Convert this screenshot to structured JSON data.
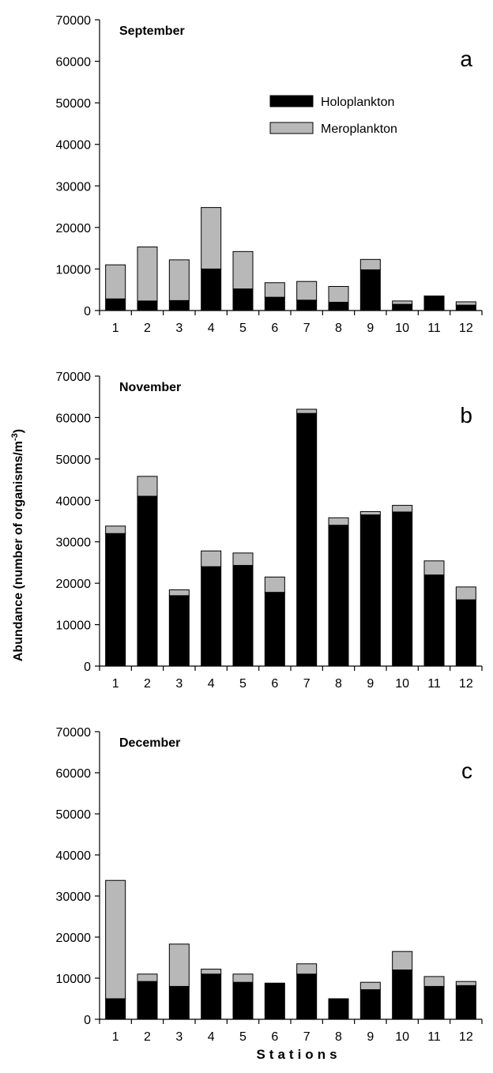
{
  "figure": {
    "ylabel": "Abundance (number of organisms/m",
    "ylabel_sup": "-3",
    "ylabel_close": ")",
    "xlabel": "Stations"
  },
  "legend": {
    "position": "panel a, upper right",
    "entries": [
      {
        "label": "Holoplankton",
        "color": "#000000"
      },
      {
        "label": "Meroplankton",
        "color": "#b8b8b8"
      }
    ]
  },
  "chart_data": [
    {
      "type": "bar",
      "stacked": true,
      "title": "September",
      "panel_label": "a",
      "categories": [
        "1",
        "2",
        "3",
        "4",
        "5",
        "6",
        "7",
        "8",
        "9",
        "10",
        "11",
        "12"
      ],
      "ylim": [
        0,
        70000
      ],
      "yticks": [
        0,
        10000,
        20000,
        30000,
        40000,
        50000,
        60000,
        70000
      ],
      "series": [
        {
          "name": "Holoplankton",
          "color": "#000000",
          "values": [
            2800,
            2300,
            2400,
            10000,
            5200,
            3200,
            2500,
            2000,
            9800,
            1500,
            3500,
            1300
          ]
        },
        {
          "name": "Meroplankton",
          "color": "#b8b8b8",
          "values": [
            8200,
            13000,
            9800,
            14800,
            9000,
            3500,
            4500,
            3800,
            2500,
            800,
            0,
            800
          ]
        }
      ]
    },
    {
      "type": "bar",
      "stacked": true,
      "title": "November",
      "panel_label": "b",
      "categories": [
        "1",
        "2",
        "3",
        "4",
        "5",
        "6",
        "7",
        "8",
        "9",
        "10",
        "11",
        "12"
      ],
      "ylim": [
        0,
        70000
      ],
      "yticks": [
        0,
        10000,
        20000,
        30000,
        40000,
        50000,
        60000,
        70000
      ],
      "series": [
        {
          "name": "Holoplankton",
          "color": "#000000",
          "values": [
            32000,
            41000,
            17000,
            24000,
            24300,
            17800,
            61000,
            34000,
            36500,
            37200,
            22000,
            16000
          ]
        },
        {
          "name": "Meroplankton",
          "color": "#b8b8b8",
          "values": [
            1800,
            4800,
            1400,
            3800,
            3000,
            3700,
            1000,
            1800,
            800,
            1600,
            3400,
            3100
          ]
        }
      ]
    },
    {
      "type": "bar",
      "stacked": true,
      "title": "December",
      "panel_label": "c",
      "categories": [
        "1",
        "2",
        "3",
        "4",
        "5",
        "6",
        "7",
        "8",
        "9",
        "10",
        "11",
        "12"
      ],
      "ylim": [
        0,
        70000
      ],
      "yticks": [
        0,
        10000,
        20000,
        30000,
        40000,
        50000,
        60000,
        70000
      ],
      "series": [
        {
          "name": "Holoplankton",
          "color": "#000000",
          "values": [
            5000,
            9200,
            8000,
            11000,
            9000,
            8800,
            11000,
            5000,
            7200,
            12000,
            8000,
            8200
          ]
        },
        {
          "name": "Meroplankton",
          "color": "#b8b8b8",
          "values": [
            28800,
            1800,
            10300,
            1200,
            2000,
            0,
            2500,
            0,
            1800,
            4500,
            2400,
            1000
          ]
        }
      ]
    }
  ]
}
